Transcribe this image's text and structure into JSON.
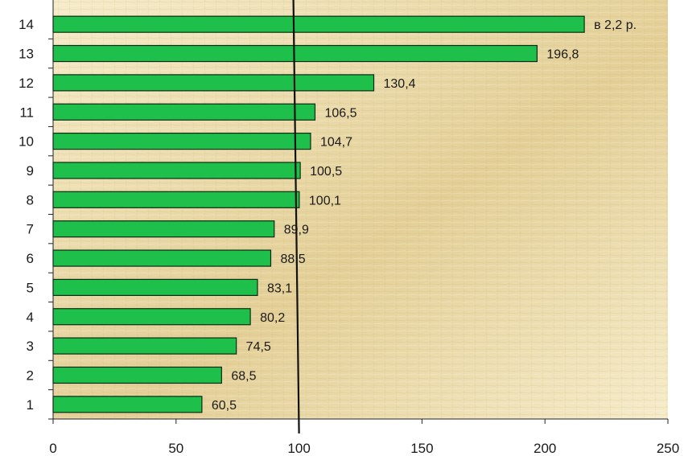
{
  "chart_data": {
    "type": "bar",
    "orientation": "horizontal",
    "categories": [
      "1",
      "2",
      "3",
      "4",
      "5",
      "6",
      "7",
      "8",
      "9",
      "10",
      "11",
      "12",
      "13",
      "14"
    ],
    "values": [
      60.5,
      68.5,
      74.5,
      80.2,
      83.1,
      88.5,
      89.9,
      100.1,
      100.5,
      104.7,
      106.5,
      130.4,
      196.8,
      216
    ],
    "data_labels": [
      "60,5",
      "68,5",
      "74,5",
      "80,2",
      "83,1",
      "88,5",
      "89,9",
      "100,1",
      "100,5",
      "104,7",
      "106,5",
      "130,4",
      "196,8",
      "в 2,2 р."
    ],
    "x_ticks": [
      "0",
      "50",
      "100",
      "150",
      "200",
      "250"
    ],
    "xlim": [
      0,
      250
    ],
    "reference_line": 100,
    "title": "",
    "xlabel": "",
    "ylabel": "",
    "grid": false,
    "legend": "none",
    "colors": {
      "bar_fill": "#1fbf4c",
      "bar_stroke": "#0b2b10",
      "reference_line": "#111111",
      "axis": "#222222",
      "background_light": "#f6eccb",
      "background_dark": "#e3cf97"
    }
  }
}
